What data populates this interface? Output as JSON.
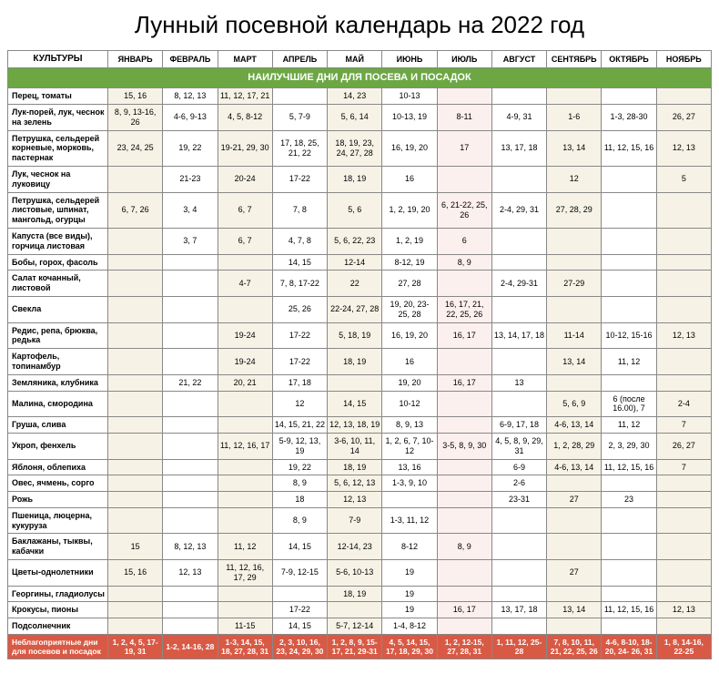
{
  "title": "Лунный посевной календарь на 2022 год",
  "header": {
    "culture": "КУЛЬТУРЫ",
    "months": [
      "ЯНВАРЬ",
      "ФЕВРАЛЬ",
      "МАРТ",
      "АПРЕЛЬ",
      "МАЙ",
      "ИЮНЬ",
      "ИЮЛЬ",
      "АВГУСТ",
      "СЕНТЯБРЬ",
      "ОКТЯБРЬ",
      "НОЯБРЬ"
    ]
  },
  "section_label": "НАИЛУЧШИЕ ДНИ ДЛЯ ПОСЕВА И ПОСАДОК",
  "rows": [
    {
      "name": "Перец, томаты",
      "cells": [
        "15, 16",
        "8, 12, 13",
        "11, 12, 17, 21",
        "",
        "14, 23",
        "10-13",
        "",
        "",
        "",
        "",
        ""
      ]
    },
    {
      "name": "Лук-порей, лук, чеснок на зелень",
      "cells": [
        "8, 9, 13-16, 26",
        "4-6, 9-13",
        "4, 5, 8-12",
        "5, 7-9",
        "5, 6, 14",
        "10-13, 19",
        "8-11",
        "4-9, 31",
        "1-6",
        "1-3, 28-30",
        "26, 27"
      ]
    },
    {
      "name": "Петрушка, сельдерей корневые, морковь, пастернак",
      "cells": [
        "23, 24, 25",
        "19, 22",
        "19-21, 29, 30",
        "17, 18, 25, 21, 22",
        "18, 19, 23, 24, 27, 28",
        "16, 19, 20",
        "17",
        "13, 17, 18",
        "13, 14",
        "11, 12, 15, 16",
        "12, 13"
      ]
    },
    {
      "name": "Лук, чеснок на луковицу",
      "cells": [
        "",
        "21-23",
        "20-24",
        "17-22",
        "18, 19",
        "16",
        "",
        "",
        "12",
        "",
        "5"
      ]
    },
    {
      "name": "Петрушка, сельдерей листовые, шпинат, мангольд, огурцы",
      "cells": [
        "6, 7, 26",
        "3, 4",
        "6, 7",
        "7, 8",
        "5, 6",
        "1, 2, 19, 20",
        "6, 21-22, 25, 26",
        "2-4, 29, 31",
        "27, 28, 29",
        "",
        ""
      ]
    },
    {
      "name": "Капуста (все виды), горчица листовая",
      "cells": [
        "",
        "3, 7",
        "6, 7",
        "4, 7, 8",
        "5, 6, 22, 23",
        "1, 2, 19",
        "6",
        "",
        "",
        "",
        ""
      ]
    },
    {
      "name": "Бобы, горох, фасоль",
      "cells": [
        "",
        "",
        "",
        "14, 15",
        "12-14",
        "8-12, 19",
        "8, 9",
        "",
        "",
        "",
        ""
      ]
    },
    {
      "name": "Салат кочанный, листовой",
      "cells": [
        "",
        "",
        "4-7",
        "7, 8, 17-22",
        "22",
        "27, 28",
        "",
        "2-4, 29-31",
        "27-29",
        "",
        ""
      ]
    },
    {
      "name": "Свекла",
      "cells": [
        "",
        "",
        "",
        "25, 26",
        "22-24, 27, 28",
        "19, 20, 23-25, 28",
        "16, 17, 21, 22, 25, 26",
        "",
        "",
        "",
        ""
      ]
    },
    {
      "name": "Редис, репа, брюква, редька",
      "cells": [
        "",
        "",
        "19-24",
        "17-22",
        "5, 18, 19",
        "16, 19, 20",
        "16, 17",
        "13, 14, 17, 18",
        "11-14",
        "10-12, 15-16",
        "12, 13"
      ]
    },
    {
      "name": "Картофель, топинамбур",
      "cells": [
        "",
        "",
        "19-24",
        "17-22",
        "18, 19",
        "16",
        "",
        "",
        "13, 14",
        "11, 12",
        ""
      ]
    },
    {
      "name": "Земляника, клубника",
      "cells": [
        "",
        "21, 22",
        "20, 21",
        "17, 18",
        "",
        "19, 20",
        "16, 17",
        "13",
        "",
        "",
        ""
      ]
    },
    {
      "name": "Малина, смородина",
      "cells": [
        "",
        "",
        "",
        "12",
        "14, 15",
        "10-12",
        "",
        "",
        "5, 6, 9",
        "6 (после 16.00), 7",
        "2-4"
      ]
    },
    {
      "name": "Груша, слива",
      "cells": [
        "",
        "",
        "",
        "14, 15, 21, 22",
        "12, 13, 18, 19",
        "8, 9, 13",
        "",
        "6-9, 17, 18",
        "4-6, 13, 14",
        "11, 12",
        "7"
      ]
    },
    {
      "name": "Укроп, фенхель",
      "cells": [
        "",
        "",
        "11, 12, 16, 17",
        "5-9, 12, 13, 19",
        "3-6, 10, 11, 14",
        "1, 2, 6, 7, 10-12",
        "3-5, 8, 9, 30",
        "4, 5, 8, 9, 29, 31",
        "1, 2, 28, 29",
        "2, 3, 29, 30",
        "26, 27"
      ]
    },
    {
      "name": "Яблоня, облепиха",
      "cells": [
        "",
        "",
        "",
        "19, 22",
        "18, 19",
        "13, 16",
        "",
        "6-9",
        "4-6, 13, 14",
        "11, 12, 15, 16",
        "7"
      ]
    },
    {
      "name": "Овес, ячмень, сорго",
      "cells": [
        "",
        "",
        "",
        "8, 9",
        "5, 6, 12, 13",
        "1-3, 9, 10",
        "",
        "2-6",
        "",
        "",
        ""
      ]
    },
    {
      "name": "Рожь",
      "cells": [
        "",
        "",
        "",
        "18",
        "12, 13",
        "",
        "",
        "23-31",
        "27",
        "23",
        ""
      ]
    },
    {
      "name": "Пшеница, люцерна, кукуруза",
      "cells": [
        "",
        "",
        "",
        "8, 9",
        "7-9",
        "1-3, 11, 12",
        "",
        "",
        "",
        "",
        ""
      ]
    },
    {
      "name": "Баклажаны, тыквы, кабачки",
      "cells": [
        "15",
        "8, 12, 13",
        "11, 12",
        "14, 15",
        "12-14, 23",
        "8-12",
        "8, 9",
        "",
        "",
        "",
        ""
      ]
    },
    {
      "name": "Цветы-однолетники",
      "cells": [
        "15, 16",
        "12, 13",
        "11, 12, 16, 17, 29",
        "7-9, 12-15",
        "5-6, 10-13",
        "19",
        "",
        "",
        "27",
        "",
        ""
      ]
    },
    {
      "name": "Георгины, гладиолусы",
      "cells": [
        "",
        "",
        "",
        "",
        "18, 19",
        "19",
        "",
        "",
        "",
        "",
        ""
      ]
    },
    {
      "name": "Крокусы, пионы",
      "cells": [
        "",
        "",
        "",
        "17-22",
        "",
        "19",
        "16, 17",
        "13, 17, 18",
        "13, 14",
        "11, 12, 15, 16",
        "12, 13"
      ]
    },
    {
      "name": "Подсолнечник",
      "cells": [
        "",
        "",
        "11-15",
        "14, 15",
        "5-7, 12-14",
        "1-4, 8-12",
        "",
        "",
        "",
        "",
        ""
      ]
    }
  ],
  "bad_row": {
    "name": "Неблагоприятные дни для посевов и посадок",
    "cells": [
      "1, 2, 4, 5, 17-19, 31",
      "1-2, 14-16, 28",
      "1-3, 14, 15, 18, 27, 28, 31",
      "2, 3, 10, 16, 23, 24, 29, 30",
      "1, 2, 8, 9, 15-17, 21, 29-31",
      "4, 5, 14, 15, 17, 18, 29, 30",
      "1, 2, 12-15, 27, 28, 31",
      "1, 11, 12, 25-28",
      "7, 8, 10, 11, 21, 22, 25, 26",
      "4-6, 8-10, 18-20, 24- 26, 31",
      "1, 8, 14-16, 22-25"
    ]
  },
  "colors": {
    "section_bg": "#6ca744",
    "bad_bg": "#d85a45",
    "odd_bg": "#f6f3e6",
    "july_bg": "#fcf0ee"
  }
}
